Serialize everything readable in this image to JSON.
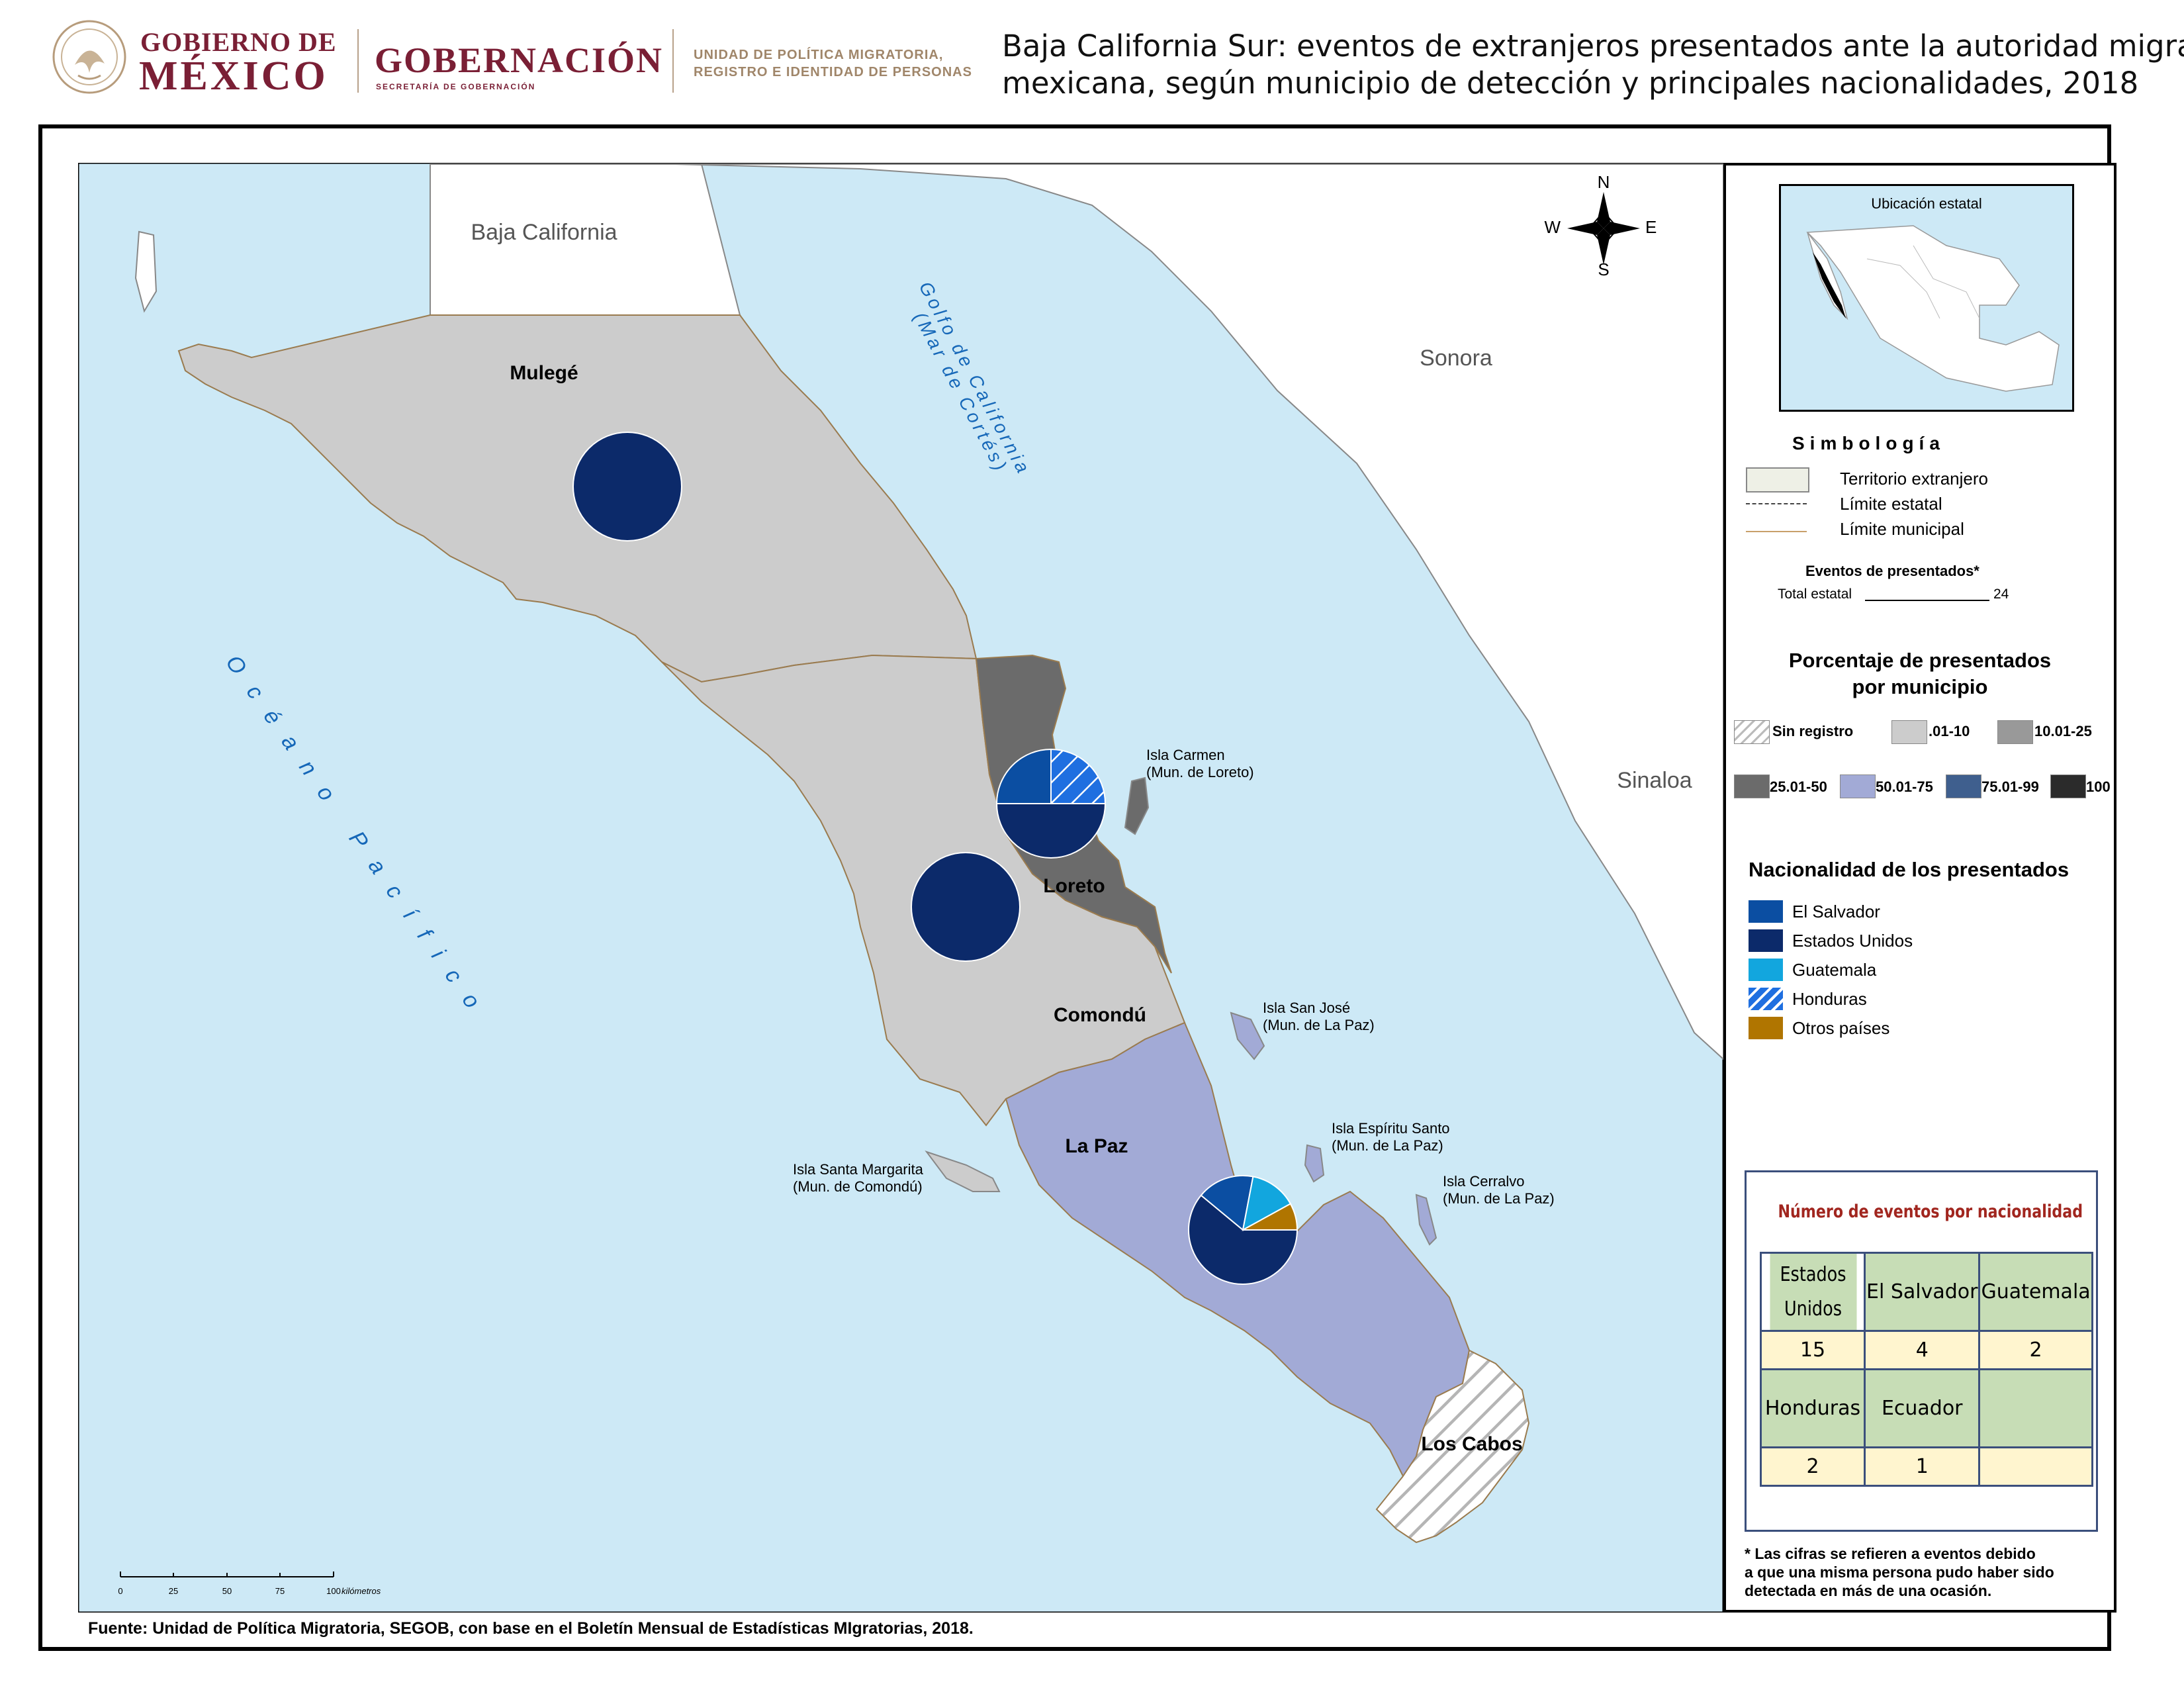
{
  "header": {
    "gobierno_line1": "GOBIERNO DE",
    "gobierno_line2": "MÉXICO",
    "gobernacion": "GOBERNACIÓN",
    "secretaria": "SECRETARÍA DE GOBERNACIÓN",
    "unidad_line1": "UNIDAD DE POLÍTICA MIGRATORIA,",
    "unidad_line2": "REGISTRO E IDENTIDAD DE PERSONAS",
    "title_line1": "Baja California Sur: eventos de extranjeros presentados ante la autoridad migratoria",
    "title_line2": "mexicana, según municipio de detección y principales nacionalidades, 2018"
  },
  "map": {
    "regions": {
      "baja_california": "Baja California",
      "sonora": "Sonora",
      "sinaloa": "Sinaloa",
      "golfo_line1": "Golfo de California",
      "golfo_line2": "(Mar de Cortés)",
      "oceano": "Océano Pacífico"
    },
    "municipalities": [
      {
        "name": "Mulegé",
        "range": ".01-10"
      },
      {
        "name": "Loreto",
        "range": "25.01-50"
      },
      {
        "name": "Comondú",
        "range": ".01-10"
      },
      {
        "name": "La Paz",
        "range": "50.01-75"
      },
      {
        "name": "Los Cabos",
        "range": "Sin registro"
      }
    ],
    "islands": {
      "carmen_1": "Isla Carmen",
      "carmen_2": "(Mun. de Loreto)",
      "sanjose_1": "Isla San José",
      "sanjose_2": "(Mun. de La Paz)",
      "espiritu_1": "Isla Espíritu Santo",
      "espiritu_2": "(Mun. de La Paz)",
      "cerralvo_1": "Isla Cerralvo",
      "cerralvo_2": "(Mun. de La Paz)",
      "margarita_1": "Isla Santa Margarita",
      "margarita_2": "(Mun. de Comondú)"
    },
    "compass": {
      "n": "N",
      "s": "S",
      "e": "E",
      "w": "W"
    },
    "scale": {
      "ticks": [
        "0",
        "25",
        "50",
        "75",
        "100"
      ],
      "unit": "kilómetros"
    },
    "pies": [
      {
        "municipality": "Mulegé",
        "slices": [
          {
            "nat": "Estados Unidos",
            "value": 1
          }
        ]
      },
      {
        "municipality": "Loreto (Isla Carmen)",
        "slices": [
          {
            "nat": "Estados Unidos",
            "value": 0.5
          },
          {
            "nat": "El Salvador",
            "value": 0.25
          },
          {
            "nat": "Honduras",
            "value": 0.25
          }
        ]
      },
      {
        "municipality": "Comondú",
        "slices": [
          {
            "nat": "Estados Unidos",
            "value": 1
          }
        ]
      },
      {
        "municipality": "La Paz",
        "slices": [
          {
            "nat": "Estados Unidos",
            "value": 0.61
          },
          {
            "nat": "El Salvador",
            "value": 0.17
          },
          {
            "nat": "Guatemala",
            "value": 0.14
          },
          {
            "nat": "Otros países",
            "value": 0.08
          }
        ]
      }
    ]
  },
  "legend": {
    "inset_title": "Ubicación estatal",
    "simbologia": "Simbología",
    "territorio": "Territorio extranjero",
    "limite_estatal": "Límite estatal",
    "limite_municipal": "Límite municipal",
    "eventos_title": "Eventos de presentados*",
    "total_label": "Total estatal",
    "total_value": "24",
    "porcentaje_line1": "Porcentaje de presentados",
    "porcentaje_line2": "por municipio",
    "ranges": [
      {
        "label": "Sin registro",
        "color": "hatch"
      },
      {
        "label": ".01-10",
        "color": "#cccccc"
      },
      {
        "label": "10.01-25",
        "color": "#999999"
      },
      {
        "label": "25.01-50",
        "color": "#6b6b6b"
      },
      {
        "label": "50.01-75",
        "color": "#a2aad6"
      },
      {
        "label": "75.01-99",
        "color": "#3f5f8e"
      },
      {
        "label": "100",
        "color": "#2b2b2b"
      }
    ],
    "nacionalidad_title": "Nacionalidad de los presentados",
    "nationalities": [
      {
        "label": "El Salvador",
        "color": "#0b4ea2"
      },
      {
        "label": "Estados Unidos",
        "color": "#0c2a6a"
      },
      {
        "label": "Guatemala",
        "color": "#12a6de"
      },
      {
        "label": "Honduras",
        "color": "hatch-blue"
      },
      {
        "label": "Otros países",
        "color": "#b07500"
      }
    ],
    "footnote_1": "* Las cifras se refieren a eventos debido",
    "footnote_2": "a que una misma persona pudo haber sido",
    "footnote_3": "detectada en más de una ocasión."
  },
  "table": {
    "title": "Número de eventos por nacionalidad",
    "header_row_1": [
      "Estados Unidos",
      "El Salvador",
      "Guatemala"
    ],
    "values_row_1": [
      "15",
      "4",
      "2"
    ],
    "header_row_2": [
      "Honduras",
      "Ecuador",
      ""
    ],
    "values_row_2": [
      "2",
      "1",
      ""
    ]
  },
  "source": "Fuente: Unidad de Política Migratoria, SEGOB, con base en el Boletín Mensual de Estadísticas MIgratorias, 2018."
}
